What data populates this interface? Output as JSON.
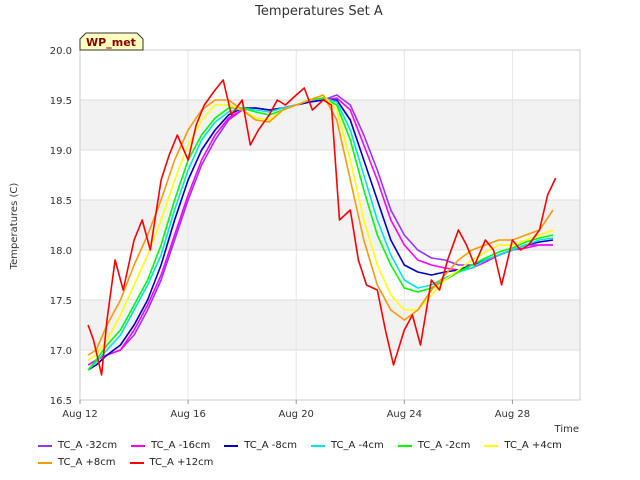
{
  "chart_data": {
    "type": "line",
    "title": "Temperatures Set A",
    "xlabel": "Time",
    "ylabel": "Temperatures (C)",
    "ylim": [
      16.5,
      20.0
    ],
    "yticks": [
      "16.5",
      "17.0",
      "17.5",
      "18.0",
      "18.5",
      "19.0",
      "19.5",
      "20.0"
    ],
    "xlim": [
      12,
      30.5
    ],
    "xticks": [
      {
        "x": 12,
        "label": "Aug 12"
      },
      {
        "x": 16,
        "label": "Aug 16"
      },
      {
        "x": 20,
        "label": "Aug 20"
      },
      {
        "x": 24,
        "label": "Aug 24"
      },
      {
        "x": 28,
        "label": "Aug 28"
      }
    ],
    "grid": true,
    "band_color": "#f2f2f2",
    "annotation": "WP_met",
    "series": [
      {
        "name": "TC_A -32cm",
        "color": "#9933ff",
        "x": [
          12.3,
          12.6,
          13.0,
          13.5,
          14.0,
          14.5,
          15.0,
          15.5,
          16.0,
          16.5,
          17.0,
          17.5,
          18.0,
          18.5,
          19.0,
          19.5,
          20.0,
          20.5,
          21.0,
          21.5,
          22.0,
          22.5,
          23.0,
          23.5,
          24.0,
          24.5,
          25.0,
          25.5,
          26.0,
          26.5,
          27.0,
          27.5,
          28.0,
          28.5,
          29.0,
          29.5
        ],
        "y": [
          16.85,
          16.9,
          16.95,
          17.0,
          17.15,
          17.4,
          17.7,
          18.1,
          18.5,
          18.85,
          19.1,
          19.3,
          19.4,
          19.42,
          19.4,
          19.42,
          19.45,
          19.48,
          19.5,
          19.55,
          19.45,
          19.15,
          18.8,
          18.4,
          18.15,
          18.0,
          17.92,
          17.9,
          17.85,
          17.85,
          17.9,
          17.95,
          18.0,
          18.05,
          18.05,
          18.05
        ]
      },
      {
        "name": "TC_A -16cm",
        "color": "#ff00ff",
        "x": [
          12.3,
          12.6,
          13.0,
          13.5,
          14.0,
          14.5,
          15.0,
          15.5,
          16.0,
          16.5,
          17.0,
          17.5,
          18.0,
          18.5,
          19.0,
          19.5,
          20.0,
          20.5,
          21.0,
          21.5,
          22.0,
          22.5,
          23.0,
          23.5,
          24.0,
          24.5,
          25.0,
          25.5,
          26.0,
          26.5,
          27.0,
          27.5,
          28.0,
          28.5,
          29.0,
          29.5
        ],
        "y": [
          16.85,
          16.9,
          16.95,
          17.0,
          17.2,
          17.45,
          17.75,
          18.15,
          18.55,
          18.9,
          19.15,
          19.32,
          19.4,
          19.42,
          19.4,
          19.42,
          19.45,
          19.48,
          19.5,
          19.52,
          19.4,
          19.05,
          18.7,
          18.3,
          18.05,
          17.9,
          17.85,
          17.82,
          17.8,
          17.82,
          17.88,
          17.95,
          18.0,
          18.02,
          18.05,
          18.05
        ]
      },
      {
        "name": "TC_A -8cm",
        "color": "#0000cc",
        "x": [
          12.3,
          12.6,
          13.0,
          13.5,
          14.0,
          14.5,
          15.0,
          15.5,
          16.0,
          16.5,
          17.0,
          17.5,
          18.0,
          18.5,
          19.0,
          19.5,
          20.0,
          20.5,
          21.0,
          21.5,
          22.0,
          22.5,
          23.0,
          23.5,
          24.0,
          24.5,
          25.0,
          25.5,
          26.0,
          26.5,
          27.0,
          27.5,
          28.0,
          28.5,
          29.0,
          29.5
        ],
        "y": [
          16.8,
          16.85,
          16.95,
          17.05,
          17.25,
          17.5,
          17.85,
          18.3,
          18.7,
          19.0,
          19.2,
          19.35,
          19.42,
          19.42,
          19.4,
          19.42,
          19.45,
          19.48,
          19.5,
          19.5,
          19.3,
          18.9,
          18.5,
          18.1,
          17.85,
          17.78,
          17.75,
          17.78,
          17.8,
          17.85,
          17.9,
          17.95,
          18.0,
          18.05,
          18.08,
          18.1
        ]
      },
      {
        "name": "TC_A -4cm",
        "color": "#00e5e5",
        "x": [
          12.3,
          12.6,
          13.0,
          13.5,
          14.0,
          14.5,
          15.0,
          15.5,
          16.0,
          16.5,
          17.0,
          17.5,
          18.0,
          18.5,
          19.0,
          19.5,
          20.0,
          20.5,
          21.0,
          21.5,
          22.0,
          22.5,
          23.0,
          23.5,
          24.0,
          24.5,
          25.0,
          25.5,
          26.0,
          26.5,
          27.0,
          27.5,
          28.0,
          28.5,
          29.0,
          29.5
        ],
        "y": [
          16.8,
          16.88,
          17.0,
          17.15,
          17.4,
          17.65,
          17.95,
          18.4,
          18.8,
          19.1,
          19.28,
          19.38,
          19.42,
          19.4,
          19.38,
          19.42,
          19.45,
          19.5,
          19.52,
          19.48,
          19.2,
          18.75,
          18.3,
          17.95,
          17.7,
          17.62,
          17.65,
          17.72,
          17.78,
          17.82,
          17.9,
          17.95,
          18.0,
          18.05,
          18.1,
          18.12
        ]
      },
      {
        "name": "TC_A -2cm",
        "color": "#00ff00",
        "x": [
          12.3,
          12.6,
          13.0,
          13.5,
          14.0,
          14.5,
          15.0,
          15.5,
          16.0,
          16.5,
          17.0,
          17.5,
          18.0,
          18.5,
          19.0,
          19.5,
          20.0,
          20.5,
          21.0,
          21.5,
          22.0,
          22.5,
          23.0,
          23.5,
          24.0,
          24.5,
          25.0,
          25.5,
          26.0,
          26.5,
          27.0,
          27.5,
          28.0,
          28.5,
          29.0,
          29.5
        ],
        "y": [
          16.8,
          16.9,
          17.05,
          17.2,
          17.45,
          17.7,
          18.05,
          18.5,
          18.9,
          19.15,
          19.32,
          19.42,
          19.42,
          19.38,
          19.35,
          19.4,
          19.45,
          19.5,
          19.52,
          19.45,
          19.1,
          18.6,
          18.15,
          17.85,
          17.62,
          17.58,
          17.62,
          17.7,
          17.78,
          17.85,
          17.92,
          17.98,
          18.02,
          18.08,
          18.12,
          18.15
        ]
      },
      {
        "name": "TC_A +4cm",
        "color": "#ffff00",
        "x": [
          12.3,
          12.6,
          13.0,
          13.5,
          14.0,
          14.5,
          15.0,
          15.5,
          16.0,
          16.5,
          17.0,
          17.5,
          18.0,
          18.5,
          19.0,
          19.5,
          20.0,
          20.5,
          21.0,
          21.5,
          22.0,
          22.5,
          23.0,
          23.5,
          24.0,
          24.5,
          25.0,
          25.5,
          26.0,
          26.5,
          27.0,
          27.5,
          28.0,
          28.5,
          29.0,
          29.5
        ],
        "y": [
          16.9,
          16.95,
          17.1,
          17.35,
          17.65,
          17.95,
          18.3,
          18.7,
          19.05,
          19.3,
          19.45,
          19.45,
          19.4,
          19.32,
          19.3,
          19.4,
          19.45,
          19.5,
          19.55,
          19.4,
          18.9,
          18.3,
          17.85,
          17.55,
          17.4,
          17.4,
          17.55,
          17.7,
          17.8,
          17.9,
          17.98,
          18.05,
          18.05,
          18.1,
          18.15,
          18.2
        ]
      },
      {
        "name": "TC_A +8cm",
        "color": "#ff9900",
        "x": [
          12.3,
          12.6,
          13.0,
          13.5,
          14.0,
          14.5,
          15.0,
          15.5,
          16.0,
          16.5,
          17.0,
          17.5,
          18.0,
          18.5,
          19.0,
          19.5,
          20.0,
          20.5,
          21.0,
          21.5,
          22.0,
          22.5,
          23.0,
          23.5,
          24.0,
          24.5,
          25.0,
          25.5,
          26.0,
          26.5,
          27.0,
          27.5,
          28.0,
          28.5,
          29.0,
          29.5
        ],
        "y": [
          16.95,
          17.0,
          17.25,
          17.5,
          17.85,
          18.15,
          18.5,
          18.9,
          19.2,
          19.4,
          19.5,
          19.5,
          19.4,
          19.3,
          19.28,
          19.4,
          19.45,
          19.5,
          19.55,
          19.3,
          18.7,
          18.1,
          17.65,
          17.4,
          17.3,
          17.4,
          17.6,
          17.75,
          17.9,
          18.0,
          18.05,
          18.1,
          18.1,
          18.15,
          18.2,
          18.4
        ]
      },
      {
        "name": "TC_A +12cm",
        "color": "#ff0000",
        "x": [
          12.3,
          12.5,
          12.8,
          13.0,
          13.3,
          13.6,
          14.0,
          14.3,
          14.6,
          15.0,
          15.3,
          15.6,
          16.0,
          16.3,
          16.6,
          17.0,
          17.3,
          17.6,
          18.0,
          18.3,
          18.6,
          19.0,
          19.3,
          19.6,
          20.0,
          20.3,
          20.6,
          21.0,
          21.3,
          21.6,
          22.0,
          22.3,
          22.6,
          23.0,
          23.3,
          23.6,
          24.0,
          24.3,
          24.6,
          25.0,
          25.3,
          25.6,
          26.0,
          26.3,
          26.6,
          27.0,
          27.3,
          27.6,
          28.0,
          28.3,
          28.6,
          29.0,
          29.3,
          29.6
        ],
        "y": [
          17.25,
          17.1,
          16.75,
          17.3,
          17.9,
          17.6,
          18.1,
          18.3,
          18.0,
          18.7,
          18.95,
          19.15,
          18.9,
          19.25,
          19.45,
          19.6,
          19.7,
          19.35,
          19.5,
          19.05,
          19.2,
          19.35,
          19.5,
          19.45,
          19.55,
          19.62,
          19.4,
          19.5,
          19.45,
          18.3,
          18.4,
          17.9,
          17.65,
          17.6,
          17.2,
          16.85,
          17.2,
          17.35,
          17.05,
          17.7,
          17.6,
          17.9,
          18.2,
          18.05,
          17.85,
          18.1,
          18.0,
          17.65,
          18.1,
          18.0,
          18.05,
          18.2,
          18.55,
          18.72
        ]
      }
    ]
  }
}
